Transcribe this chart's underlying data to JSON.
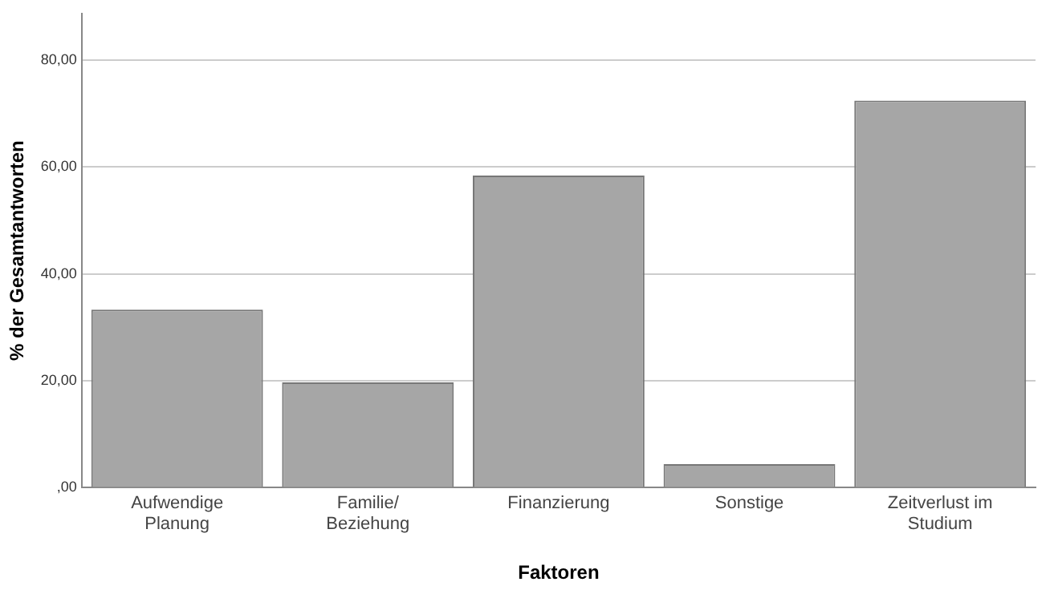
{
  "chart_data": {
    "type": "bar",
    "xlabel": "Faktoren",
    "ylabel": "% der Gesamtantworten",
    "categories": [
      "Aufwendige\nPlanung",
      "Familie/\nBeziehung",
      "Finanzierung",
      "Sonstige",
      "Zeitverlust im\nStudium"
    ],
    "values": [
      33.3,
      19.7,
      58.4,
      4.4,
      72.4
    ],
    "color": "#a6a6a6",
    "ylim": [
      0,
      88.7
    ],
    "yticks": [
      {
        "value": 0,
        "label": ",00"
      },
      {
        "value": 20,
        "label": "20,00"
      },
      {
        "value": 40,
        "label": "40,00"
      },
      {
        "value": 60,
        "label": "60,00"
      },
      {
        "value": 80,
        "label": "80,00"
      }
    ],
    "grid": "y",
    "legend": false
  }
}
